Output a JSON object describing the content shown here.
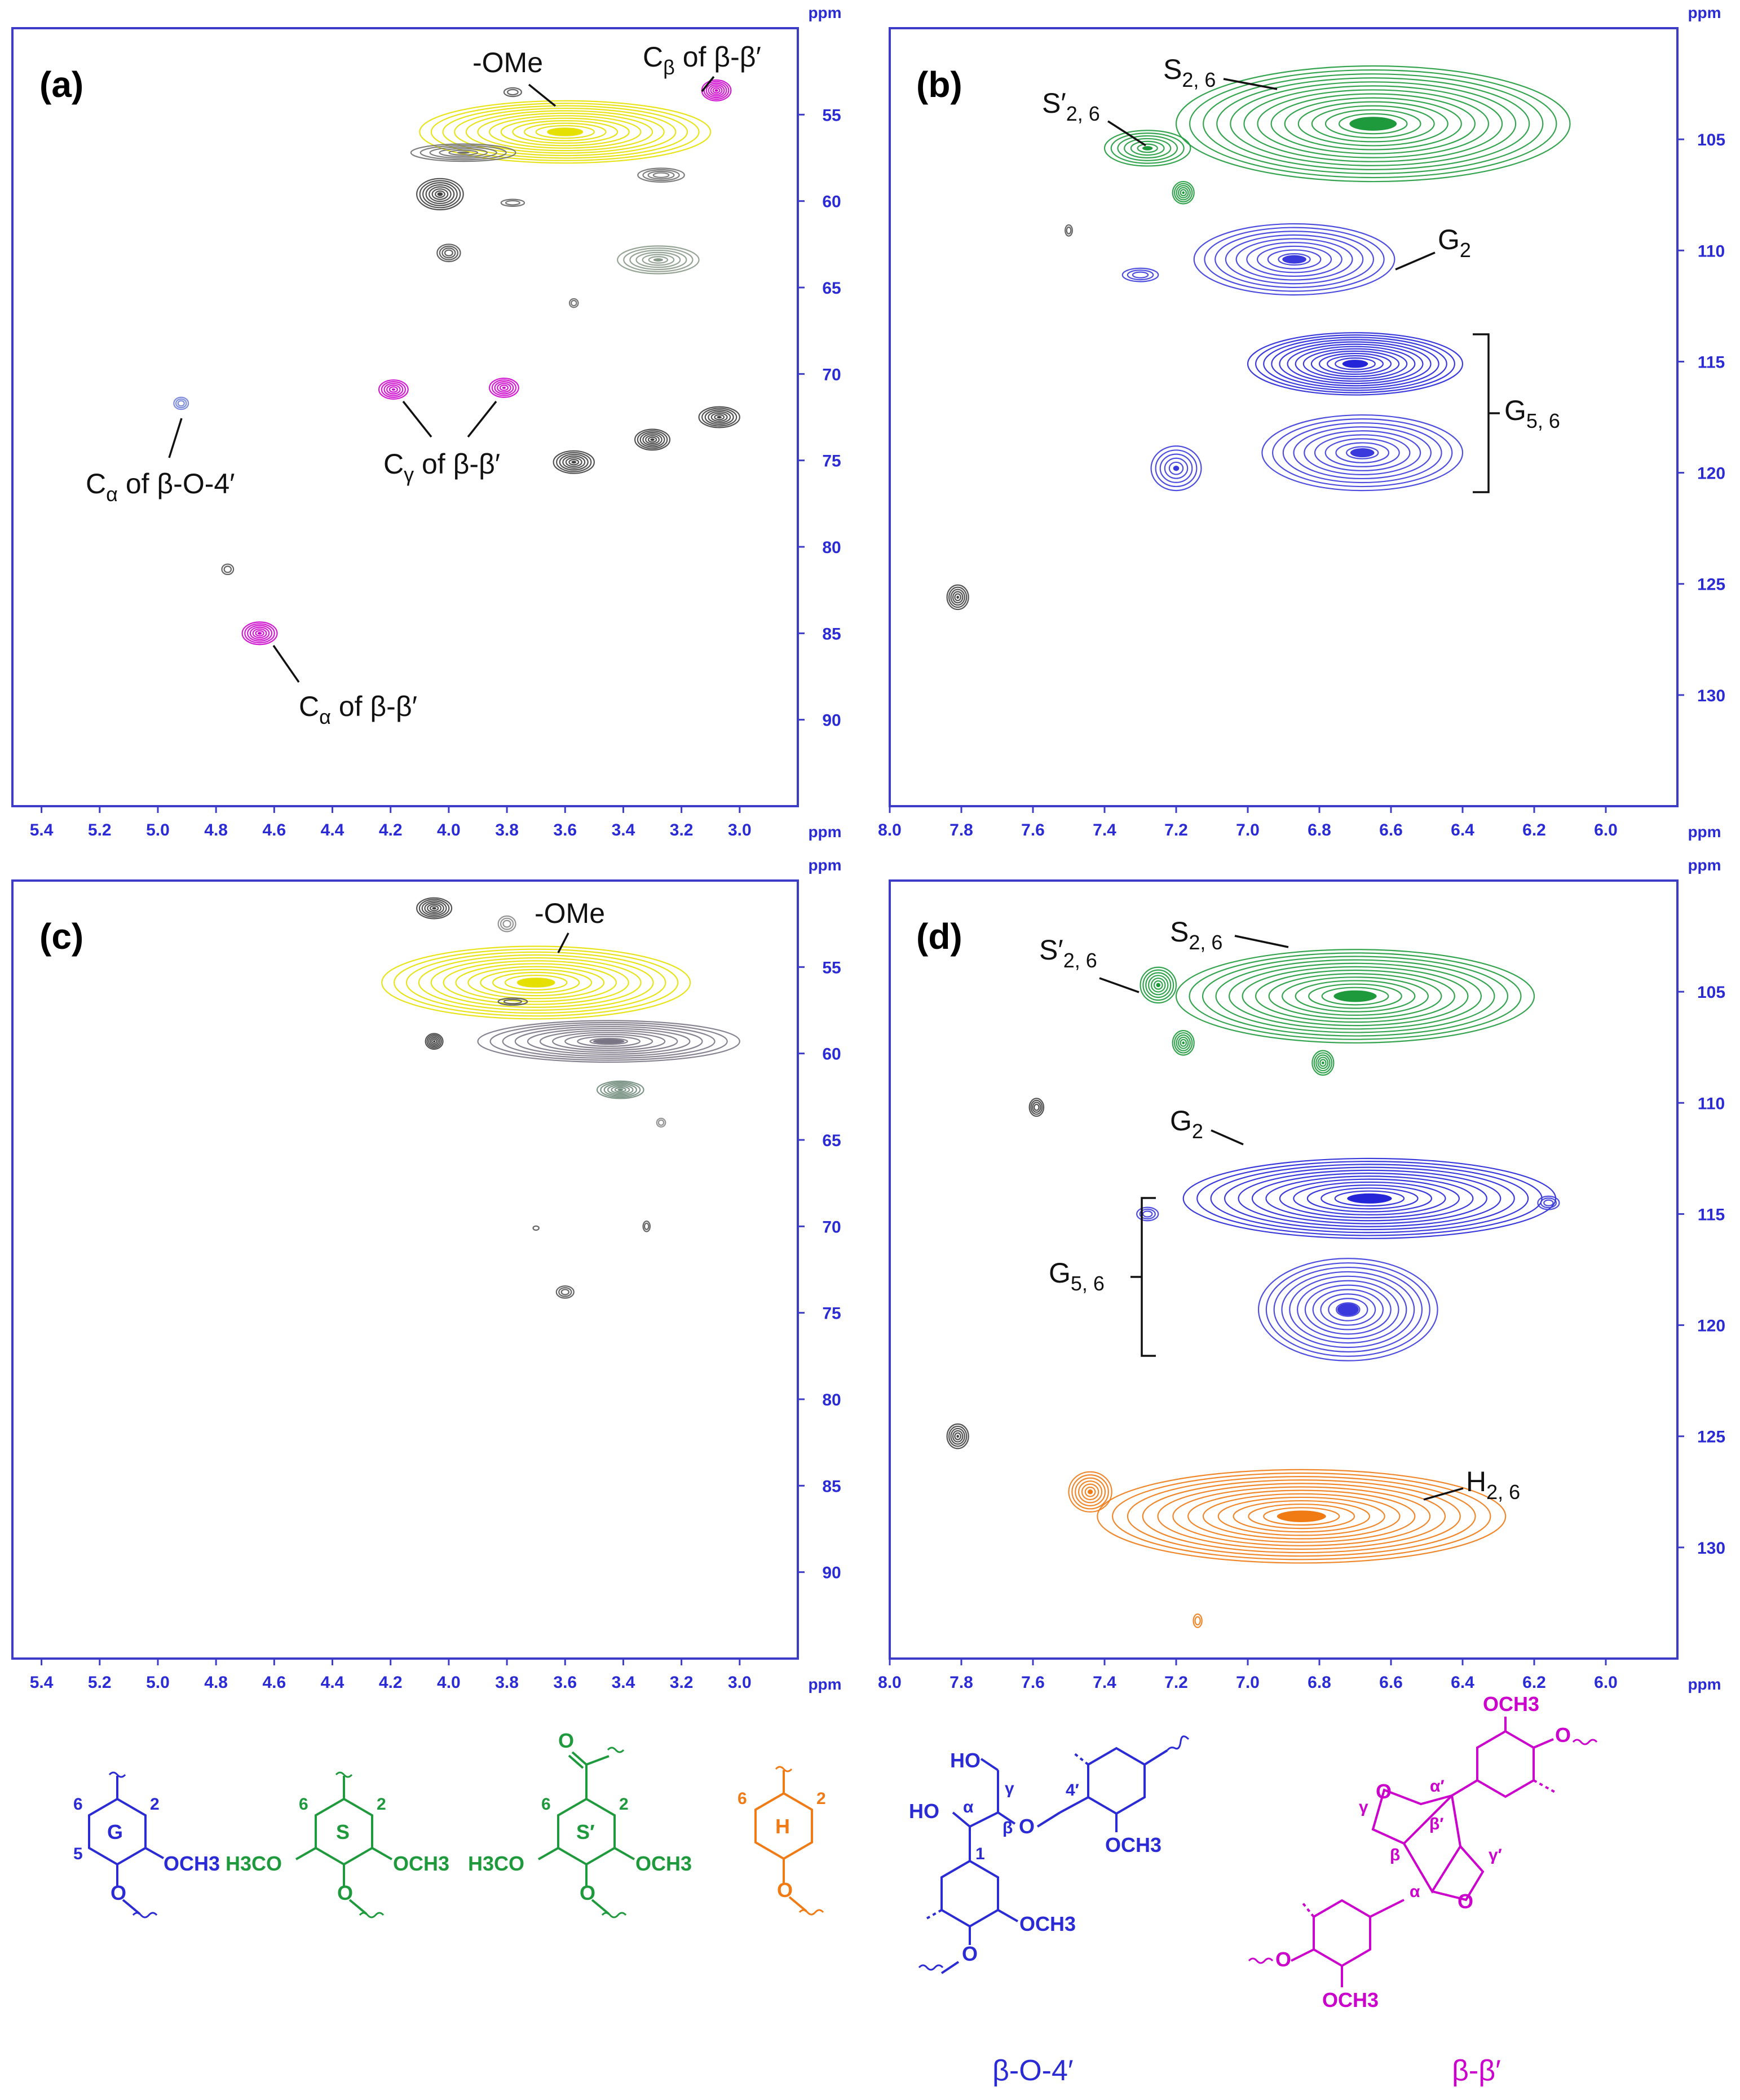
{
  "chart_data": [
    {
      "panel": "(a)",
      "type": "heatmap",
      "unit": "ppm",
      "x_axis": {
        "ticks": [
          "5.4",
          "5.2",
          "5.0",
          "4.8",
          "4.6",
          "4.4",
          "4.2",
          "4.0",
          "3.8",
          "3.6",
          "3.4",
          "3.2",
          "3.0"
        ],
        "range": [
          5.5,
          2.8
        ],
        "reversed": true
      },
      "y_axis": {
        "ticks": [
          "55",
          "60",
          "65",
          "70",
          "75",
          "80",
          "85",
          "90"
        ],
        "range": [
          50,
          95
        ],
        "reversed": true
      },
      "peaks": [
        {
          "x": 3.6,
          "y": 56.0,
          "rx": 0.5,
          "ry": 1.8,
          "color": "#e6e000",
          "rings": 12
        },
        {
          "x": 3.08,
          "y": 53.6,
          "rx": 0.05,
          "ry": 0.6,
          "color": "#cc00cc",
          "rings": 6
        },
        {
          "x": 3.78,
          "y": 53.7,
          "rx": 0.03,
          "ry": 0.25,
          "color": "#555555",
          "rings": 2
        },
        {
          "x": 3.95,
          "y": 57.2,
          "rx": 0.18,
          "ry": 0.5,
          "color": "#707070",
          "rings": 5
        },
        {
          "x": 4.03,
          "y": 59.6,
          "rx": 0.08,
          "ry": 0.9,
          "color": "#404040",
          "rings": 7
        },
        {
          "x": 3.78,
          "y": 60.1,
          "rx": 0.04,
          "ry": 0.2,
          "color": "#666666",
          "rings": 2
        },
        {
          "x": 3.27,
          "y": 58.5,
          "rx": 0.08,
          "ry": 0.4,
          "color": "#707070",
          "rings": 4
        },
        {
          "x": 4.0,
          "y": 63.0,
          "rx": 0.04,
          "ry": 0.5,
          "color": "#505050",
          "rings": 4
        },
        {
          "x": 3.28,
          "y": 63.4,
          "rx": 0.14,
          "ry": 0.8,
          "color": "#8a9a8a",
          "rings": 6
        },
        {
          "x": 3.57,
          "y": 65.9,
          "rx": 0.015,
          "ry": 0.25,
          "color": "#666666",
          "rings": 2
        },
        {
          "x": 4.92,
          "y": 71.7,
          "rx": 0.025,
          "ry": 0.35,
          "color": "#6f7fd8",
          "rings": 3
        },
        {
          "x": 4.19,
          "y": 70.9,
          "rx": 0.05,
          "ry": 0.55,
          "color": "#cc00cc",
          "rings": 5
        },
        {
          "x": 3.81,
          "y": 70.8,
          "rx": 0.05,
          "ry": 0.55,
          "color": "#cc00cc",
          "rings": 5
        },
        {
          "x": 3.57,
          "y": 75.1,
          "rx": 0.07,
          "ry": 0.65,
          "color": "#404040",
          "rings": 6
        },
        {
          "x": 3.3,
          "y": 73.8,
          "rx": 0.06,
          "ry": 0.6,
          "color": "#404040",
          "rings": 6
        },
        {
          "x": 3.07,
          "y": 72.5,
          "rx": 0.07,
          "ry": 0.6,
          "color": "#404040",
          "rings": 6
        },
        {
          "x": 4.76,
          "y": 81.3,
          "rx": 0.02,
          "ry": 0.3,
          "color": "#555555",
          "rings": 2
        },
        {
          "x": 4.65,
          "y": 85.0,
          "rx": 0.06,
          "ry": 0.65,
          "color": "#cc00cc",
          "rings": 6
        }
      ],
      "annotations": [
        {
          "text": "-OMe",
          "sub": "",
          "suffix": ""
        },
        {
          "text": "C",
          "sub": "β",
          "suffix": " of β-β′"
        },
        {
          "text": "C",
          "sub": "α",
          "suffix": " of β-O-4′"
        },
        {
          "text": "C",
          "sub": "γ",
          "suffix": " of β-β′"
        },
        {
          "text": "C",
          "sub": "α",
          "suffix": " of β-β′"
        }
      ]
    },
    {
      "panel": "(b)",
      "type": "heatmap",
      "unit": "ppm",
      "x_axis": {
        "ticks": [
          "8.0",
          "7.8",
          "7.6",
          "7.4",
          "7.2",
          "7.0",
          "6.8",
          "6.6",
          "6.4",
          "6.2",
          "6.0"
        ],
        "range": [
          8.0,
          5.8
        ],
        "reversed": true
      },
      "y_axis": {
        "ticks": [
          "105",
          "110",
          "115",
          "120",
          "125",
          "130"
        ],
        "range": [
          100,
          135
        ],
        "reversed": true
      },
      "peaks": [
        {
          "x": 6.65,
          "y": 104.3,
          "rx": 0.55,
          "ry": 2.6,
          "color": "#1e9a3c",
          "rings": 14
        },
        {
          "x": 7.28,
          "y": 105.4,
          "rx": 0.12,
          "ry": 0.8,
          "color": "#1e9a3c",
          "rings": 6
        },
        {
          "x": 7.18,
          "y": 107.4,
          "rx": 0.03,
          "ry": 0.5,
          "color": "#1e9a3c",
          "rings": 5
        },
        {
          "x": 6.87,
          "y": 110.4,
          "rx": 0.28,
          "ry": 1.6,
          "color": "#3a3adc",
          "rings": 9
        },
        {
          "x": 7.3,
          "y": 111.1,
          "rx": 0.05,
          "ry": 0.3,
          "color": "#3a3adc",
          "rings": 3
        },
        {
          "x": 6.7,
          "y": 115.1,
          "rx": 0.3,
          "ry": 1.4,
          "color": "#2424d8",
          "rings": 13
        },
        {
          "x": 6.68,
          "y": 119.1,
          "rx": 0.28,
          "ry": 1.7,
          "color": "#3a3adc",
          "rings": 9
        },
        {
          "x": 7.2,
          "y": 119.8,
          "rx": 0.07,
          "ry": 1.0,
          "color": "#3a3adc",
          "rings": 5
        },
        {
          "x": 7.81,
          "y": 125.6,
          "rx": 0.03,
          "ry": 0.55,
          "color": "#404040",
          "rings": 5
        },
        {
          "x": 7.5,
          "y": 109.1,
          "rx": 0.01,
          "ry": 0.25,
          "color": "#555555",
          "rings": 2
        }
      ],
      "annotations": [
        {
          "text": "S",
          "sub": "2, 6",
          "suffix": ""
        },
        {
          "text": "S′",
          "sub": "2, 6",
          "suffix": ""
        },
        {
          "text": "G",
          "sub": "2",
          "suffix": ""
        },
        {
          "text": "G",
          "sub": "5, 6",
          "suffix": ""
        }
      ]
    },
    {
      "panel": "(c)",
      "type": "heatmap",
      "unit": "ppm",
      "x_axis": {
        "ticks": [
          "5.4",
          "5.2",
          "5.0",
          "4.8",
          "4.6",
          "4.4",
          "4.2",
          "4.0",
          "3.8",
          "3.6",
          "3.4",
          "3.2",
          "3.0"
        ],
        "range": [
          5.5,
          2.8
        ],
        "reversed": true
      },
      "y_axis": {
        "ticks": [
          "55",
          "60",
          "65",
          "70",
          "75",
          "80",
          "85",
          "90"
        ],
        "range": [
          50,
          95
        ],
        "reversed": true
      },
      "peaks": [
        {
          "x": 3.7,
          "y": 55.9,
          "rx": 0.53,
          "ry": 2.1,
          "color": "#e6e000",
          "rings": 12
        },
        {
          "x": 4.05,
          "y": 51.6,
          "rx": 0.06,
          "ry": 0.6,
          "color": "#404040",
          "rings": 6
        },
        {
          "x": 3.8,
          "y": 52.5,
          "rx": 0.03,
          "ry": 0.45,
          "color": "#888888",
          "rings": 3
        },
        {
          "x": 3.78,
          "y": 57.0,
          "rx": 0.05,
          "ry": 0.2,
          "color": "#555555",
          "rings": 2
        },
        {
          "x": 4.05,
          "y": 59.3,
          "rx": 0.03,
          "ry": 0.45,
          "color": "#404040",
          "rings": 5
        },
        {
          "x": 3.45,
          "y": 59.3,
          "rx": 0.45,
          "ry": 1.2,
          "color": "#7a7585",
          "rings": 10
        },
        {
          "x": 3.41,
          "y": 62.1,
          "rx": 0.08,
          "ry": 0.5,
          "color": "#6f8a7a",
          "rings": 6
        },
        {
          "x": 3.27,
          "y": 64.0,
          "rx": 0.015,
          "ry": 0.25,
          "color": "#888888",
          "rings": 2
        },
        {
          "x": 3.7,
          "y": 70.1,
          "rx": 0.01,
          "ry": 0.12,
          "color": "#555555",
          "rings": 1
        },
        {
          "x": 3.32,
          "y": 70.0,
          "rx": 0.012,
          "ry": 0.3,
          "color": "#555555",
          "rings": 2
        },
        {
          "x": 3.6,
          "y": 73.8,
          "rx": 0.03,
          "ry": 0.35,
          "color": "#555555",
          "rings": 3
        }
      ],
      "annotations": [
        {
          "text": "-OMe",
          "sub": "",
          "suffix": ""
        }
      ]
    },
    {
      "panel": "(d)",
      "type": "heatmap",
      "unit": "ppm",
      "x_axis": {
        "ticks": [
          "8.0",
          "7.8",
          "7.6",
          "7.4",
          "7.2",
          "7.0",
          "6.8",
          "6.6",
          "6.4",
          "6.2",
          "6.0"
        ],
        "range": [
          8.0,
          5.8
        ],
        "reversed": true
      },
      "y_axis": {
        "ticks": [
          "105",
          "110",
          "115",
          "120",
          "125",
          "130"
        ],
        "range": [
          100,
          135
        ],
        "reversed": true
      },
      "peaks": [
        {
          "x": 6.7,
          "y": 105.2,
          "rx": 0.5,
          "ry": 2.1,
          "color": "#1e9a3c",
          "rings": 13
        },
        {
          "x": 7.25,
          "y": 104.7,
          "rx": 0.05,
          "ry": 0.8,
          "color": "#1e9a3c",
          "rings": 6
        },
        {
          "x": 7.18,
          "y": 107.3,
          "rx": 0.03,
          "ry": 0.55,
          "color": "#1e9a3c",
          "rings": 5
        },
        {
          "x": 6.79,
          "y": 108.2,
          "rx": 0.03,
          "ry": 0.55,
          "color": "#1e9a3c",
          "rings": 5
        },
        {
          "x": 6.66,
          "y": 114.3,
          "rx": 0.52,
          "ry": 1.8,
          "color": "#2424d8",
          "rings": 13
        },
        {
          "x": 6.72,
          "y": 119.3,
          "rx": 0.25,
          "ry": 2.3,
          "color": "#3a3adc",
          "rings": 11
        },
        {
          "x": 6.16,
          "y": 114.5,
          "rx": 0.03,
          "ry": 0.3,
          "color": "#3a3adc",
          "rings": 3
        },
        {
          "x": 7.28,
          "y": 115.0,
          "rx": 0.03,
          "ry": 0.3,
          "color": "#3a3adc",
          "rings": 3
        },
        {
          "x": 7.59,
          "y": 110.2,
          "rx": 0.02,
          "ry": 0.4,
          "color": "#404040",
          "rings": 4
        },
        {
          "x": 7.81,
          "y": 125.0,
          "rx": 0.03,
          "ry": 0.55,
          "color": "#404040",
          "rings": 5
        },
        {
          "x": 6.85,
          "y": 128.6,
          "rx": 0.57,
          "ry": 2.1,
          "color": "#f07a14",
          "rings": 13
        },
        {
          "x": 7.44,
          "y": 127.5,
          "rx": 0.06,
          "ry": 0.9,
          "color": "#f07a14",
          "rings": 6
        },
        {
          "x": 7.14,
          "y": 133.3,
          "rx": 0.012,
          "ry": 0.3,
          "color": "#f07a14",
          "rings": 2
        }
      ],
      "annotations": [
        {
          "text": "S′",
          "sub": "2, 6",
          "suffix": ""
        },
        {
          "text": "S",
          "sub": "2, 6",
          "suffix": ""
        },
        {
          "text": "G",
          "sub": "2",
          "suffix": ""
        },
        {
          "text": "G",
          "sub": "5, 6",
          "suffix": ""
        },
        {
          "text": "H",
          "sub": "2, 6",
          "suffix": ""
        }
      ]
    }
  ],
  "colors": {
    "axis": "#3c3cc8",
    "axis_text": "#2b2bd6",
    "G": "#2b2bd6",
    "S": "#1e9a3c",
    "H": "#f07a14",
    "bb": "#cc00cc"
  },
  "structures": {
    "G": {
      "ring": "G",
      "pos": [
        "6",
        "5",
        "2"
      ],
      "substituent": "OCH3"
    },
    "S": {
      "ring": "S",
      "pos": [
        "6",
        "2"
      ],
      "left": "H3CO",
      "right": "OCH3"
    },
    "Sp": {
      "ring": "S′",
      "pos": [
        "6",
        "2"
      ],
      "left": "H3CO",
      "right": "OCH3"
    },
    "H": {
      "ring": "H",
      "pos": [
        "6",
        "2"
      ]
    },
    "bo4": {
      "name": "β-O-4′",
      "labels": [
        "HO",
        "HO",
        "γ",
        "α",
        "β",
        "O",
        "4′",
        "1",
        "OCH3",
        "OCH3"
      ]
    },
    "bb": {
      "name": "β-β′",
      "labels": [
        "OCH3",
        "O",
        "O",
        "α′",
        "β′",
        "γ",
        "β",
        "γ′",
        "α",
        "O",
        "O",
        "OCH3"
      ]
    }
  }
}
